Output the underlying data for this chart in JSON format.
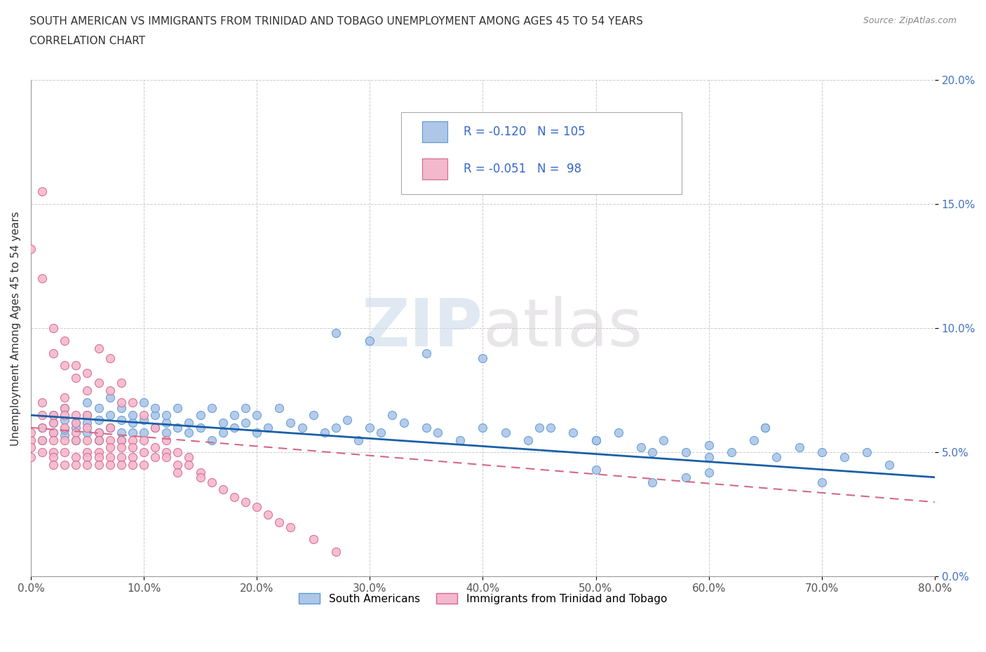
{
  "title_line1": "SOUTH AMERICAN VS IMMIGRANTS FROM TRINIDAD AND TOBAGO UNEMPLOYMENT AMONG AGES 45 TO 54 YEARS",
  "title_line2": "CORRELATION CHART",
  "source": "Source: ZipAtlas.com",
  "ylabel": "Unemployment Among Ages 45 to 54 years",
  "xlim": [
    0.0,
    0.8
  ],
  "ylim": [
    0.0,
    0.2
  ],
  "xticks": [
    0.0,
    0.1,
    0.2,
    0.3,
    0.4,
    0.5,
    0.6,
    0.7,
    0.8
  ],
  "xticklabels": [
    "0.0%",
    "10.0%",
    "20.0%",
    "30.0%",
    "40.0%",
    "50.0%",
    "60.0%",
    "70.0%",
    "80.0%"
  ],
  "yticks": [
    0.0,
    0.05,
    0.1,
    0.15,
    0.2
  ],
  "yticklabels": [
    "0.0%",
    "5.0%",
    "10.0%",
    "15.0%",
    "20.0%"
  ],
  "blue_color": "#aec6e8",
  "blue_edge": "#5b9bd5",
  "pink_color": "#f4b8cc",
  "pink_edge": "#d4688a",
  "trend_blue": "#1a5fa8",
  "trend_pink": "#d4688a",
  "watermark_zip": "ZIP",
  "watermark_atlas": "atlas",
  "R_blue": -0.12,
  "N_blue": 105,
  "R_pink": -0.051,
  "N_pink": 98,
  "legend_blue": "South Americans",
  "legend_pink": "Immigrants from Trinidad and Tobago",
  "blue_scatter_x": [
    0.01,
    0.01,
    0.02,
    0.02,
    0.02,
    0.03,
    0.03,
    0.03,
    0.03,
    0.04,
    0.04,
    0.04,
    0.05,
    0.05,
    0.05,
    0.05,
    0.06,
    0.06,
    0.06,
    0.06,
    0.07,
    0.07,
    0.07,
    0.08,
    0.08,
    0.08,
    0.08,
    0.09,
    0.09,
    0.09,
    0.1,
    0.1,
    0.1,
    0.11,
    0.11,
    0.11,
    0.12,
    0.12,
    0.12,
    0.13,
    0.13,
    0.14,
    0.14,
    0.15,
    0.15,
    0.16,
    0.16,
    0.17,
    0.17,
    0.18,
    0.18,
    0.19,
    0.19,
    0.2,
    0.2,
    0.21,
    0.22,
    0.23,
    0.24,
    0.25,
    0.26,
    0.27,
    0.28,
    0.29,
    0.3,
    0.31,
    0.32,
    0.33,
    0.35,
    0.36,
    0.38,
    0.4,
    0.42,
    0.44,
    0.46,
    0.48,
    0.5,
    0.52,
    0.54,
    0.56,
    0.58,
    0.6,
    0.62,
    0.64,
    0.66,
    0.68,
    0.7,
    0.72,
    0.74,
    0.76,
    0.27,
    0.3,
    0.35,
    0.4,
    0.45,
    0.5,
    0.55,
    0.6,
    0.65,
    0.7,
    0.58,
    0.5,
    0.55,
    0.6,
    0.65
  ],
  "blue_scatter_y": [
    0.06,
    0.055,
    0.065,
    0.058,
    0.062,
    0.057,
    0.063,
    0.059,
    0.068,
    0.062,
    0.055,
    0.06,
    0.065,
    0.058,
    0.062,
    0.07,
    0.058,
    0.063,
    0.055,
    0.068,
    0.065,
    0.06,
    0.072,
    0.058,
    0.063,
    0.055,
    0.068,
    0.062,
    0.058,
    0.065,
    0.07,
    0.058,
    0.063,
    0.065,
    0.06,
    0.068,
    0.062,
    0.058,
    0.065,
    0.06,
    0.068,
    0.062,
    0.058,
    0.065,
    0.06,
    0.068,
    0.055,
    0.062,
    0.058,
    0.065,
    0.06,
    0.068,
    0.062,
    0.058,
    0.065,
    0.06,
    0.068,
    0.062,
    0.06,
    0.065,
    0.058,
    0.06,
    0.063,
    0.055,
    0.06,
    0.058,
    0.065,
    0.062,
    0.06,
    0.058,
    0.055,
    0.06,
    0.058,
    0.055,
    0.06,
    0.058,
    0.055,
    0.058,
    0.052,
    0.055,
    0.05,
    0.053,
    0.05,
    0.055,
    0.048,
    0.052,
    0.05,
    0.048,
    0.05,
    0.045,
    0.098,
    0.095,
    0.09,
    0.088,
    0.06,
    0.055,
    0.05,
    0.048,
    0.06,
    0.038,
    0.04,
    0.043,
    0.038,
    0.042,
    0.06
  ],
  "pink_scatter_x": [
    0.0,
    0.0,
    0.0,
    0.0,
    0.01,
    0.01,
    0.01,
    0.01,
    0.01,
    0.02,
    0.02,
    0.02,
    0.02,
    0.02,
    0.02,
    0.02,
    0.03,
    0.03,
    0.03,
    0.03,
    0.03,
    0.03,
    0.03,
    0.04,
    0.04,
    0.04,
    0.04,
    0.04,
    0.04,
    0.05,
    0.05,
    0.05,
    0.05,
    0.05,
    0.05,
    0.06,
    0.06,
    0.06,
    0.06,
    0.06,
    0.07,
    0.07,
    0.07,
    0.07,
    0.07,
    0.08,
    0.08,
    0.08,
    0.08,
    0.09,
    0.09,
    0.09,
    0.09,
    0.1,
    0.1,
    0.1,
    0.11,
    0.11,
    0.12,
    0.12,
    0.13,
    0.13,
    0.14,
    0.14,
    0.15,
    0.15,
    0.16,
    0.17,
    0.18,
    0.19,
    0.2,
    0.21,
    0.22,
    0.23,
    0.25,
    0.27,
    0.0,
    0.01,
    0.02,
    0.03,
    0.04,
    0.05,
    0.06,
    0.07,
    0.08,
    0.09,
    0.1,
    0.11,
    0.12,
    0.13,
    0.01,
    0.02,
    0.03,
    0.04,
    0.05,
    0.06,
    0.07,
    0.08
  ],
  "pink_scatter_y": [
    0.055,
    0.058,
    0.052,
    0.048,
    0.06,
    0.065,
    0.07,
    0.055,
    0.05,
    0.062,
    0.058,
    0.065,
    0.055,
    0.05,
    0.048,
    0.045,
    0.068,
    0.072,
    0.065,
    0.06,
    0.055,
    0.05,
    0.045,
    0.062,
    0.058,
    0.055,
    0.065,
    0.048,
    0.045,
    0.06,
    0.065,
    0.055,
    0.05,
    0.048,
    0.045,
    0.058,
    0.055,
    0.05,
    0.048,
    0.045,
    0.055,
    0.06,
    0.052,
    0.048,
    0.045,
    0.055,
    0.052,
    0.048,
    0.045,
    0.055,
    0.052,
    0.048,
    0.045,
    0.055,
    0.05,
    0.045,
    0.052,
    0.048,
    0.05,
    0.048,
    0.045,
    0.042,
    0.048,
    0.045,
    0.042,
    0.04,
    0.038,
    0.035,
    0.032,
    0.03,
    0.028,
    0.025,
    0.022,
    0.02,
    0.015,
    0.01,
    0.132,
    0.12,
    0.09,
    0.085,
    0.08,
    0.075,
    0.092,
    0.088,
    0.078,
    0.07,
    0.065,
    0.06,
    0.055,
    0.05,
    0.155,
    0.1,
    0.095,
    0.085,
    0.082,
    0.078,
    0.075,
    0.07
  ]
}
